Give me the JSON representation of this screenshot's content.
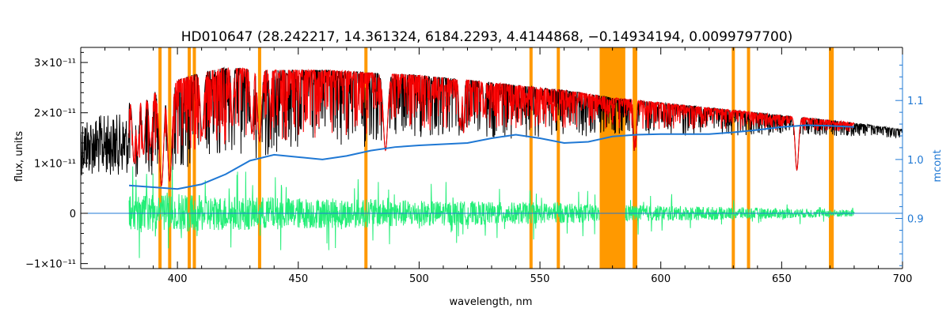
{
  "chart_data": {
    "type": "line",
    "title": "HD010647    (28.242217, 14.361324, 6184.2293, 4.4144868, −0.14934194, 0.0099797700)",
    "xlabel": "wavelength, nm",
    "ylabel": "flux, units",
    "y2label": "mcont",
    "xlim": [
      360,
      700
    ],
    "ylim": [
      -1.1e-11,
      3.3e-11
    ],
    "y2lim": [
      0.815,
      1.19
    ],
    "x_ticks": [
      400,
      450,
      500,
      550,
      600,
      650,
      700
    ],
    "x_tick_labels": [
      "400",
      "450",
      "500",
      "550",
      "600",
      "650",
      "700"
    ],
    "y_ticks": [
      -1e-11,
      0,
      1e-11,
      2e-11,
      3e-11
    ],
    "y_tick_labels": [
      "−1×10⁻¹¹",
      "0",
      "1×10⁻¹¹",
      "2×10⁻¹¹",
      "3×10⁻¹¹"
    ],
    "y2_ticks": [
      0.9,
      1.0,
      1.1
    ],
    "y2_tick_labels": [
      "0.9",
      "1.0",
      "1.1"
    ],
    "masked_lines_nm": [
      392.8,
      396.8,
      404.9,
      407.0,
      434.0,
      478.0,
      546.3,
      557.6,
      589.0,
      589.6,
      630.0,
      636.3,
      670.2,
      670.9
    ],
    "masked_band_nm": [
      574.7,
      585.3
    ],
    "series": [
      {
        "name": "",
        "role": "observed flux",
        "color": "#000000",
        "x": [
          360,
          380,
          400,
          410,
          420,
          440,
          460,
          480,
          500,
          520,
          540,
          560,
          580,
          600,
          620,
          640,
          660,
          680,
          700
        ],
        "y": [
          2.15e-11,
          2.2e-11,
          2.65e-11,
          2.8e-11,
          2.9e-11,
          2.85e-11,
          2.85e-11,
          2.8e-11,
          2.75e-11,
          2.65e-11,
          2.55e-11,
          2.45e-11,
          2.3e-11,
          2.2e-11,
          2.1e-11,
          2e-11,
          1.9e-11,
          1.8e-11,
          1.67e-11
        ]
      },
      {
        "name": "",
        "role": "model fit",
        "color": "#ff0000",
        "x": [
          380,
          400,
          410,
          420,
          440,
          460,
          480,
          500,
          520,
          540,
          560,
          580,
          600,
          620,
          640,
          660,
          680
        ],
        "y": [
          2.2e-11,
          2.65e-11,
          2.8e-11,
          2.9e-11,
          2.85e-11,
          2.85e-11,
          2.8e-11,
          2.75e-11,
          2.65e-11,
          2.55e-11,
          2.45e-11,
          2.3e-11,
          2.2e-11,
          2.1e-11,
          2e-11,
          1.9e-11,
          1.8e-11
        ]
      },
      {
        "name": "",
        "role": "residuals",
        "color": "#22ee77",
        "x": [
          380,
          680
        ],
        "y": [
          0,
          0
        ]
      },
      {
        "name": "",
        "role": "continuum multiplier (right axis)",
        "color": "#1f78d4",
        "axis": "right",
        "x": [
          380,
          390,
          400,
          410,
          420,
          430,
          440,
          450,
          460,
          470,
          480,
          490,
          500,
          510,
          520,
          530,
          540,
          550,
          560,
          570,
          580,
          590,
          600,
          610,
          620,
          630,
          640,
          650,
          660,
          670,
          680
        ],
        "y": [
          0.956,
          0.953,
          0.95,
          0.958,
          0.975,
          0.998,
          1.008,
          1.004,
          1.0,
          1.006,
          1.015,
          1.021,
          1.024,
          1.026,
          1.028,
          1.036,
          1.042,
          1.036,
          1.028,
          1.03,
          1.039,
          1.042,
          1.043,
          1.043,
          1.043,
          1.046,
          1.05,
          1.055,
          1.058,
          1.057,
          1.055
        ]
      }
    ]
  }
}
